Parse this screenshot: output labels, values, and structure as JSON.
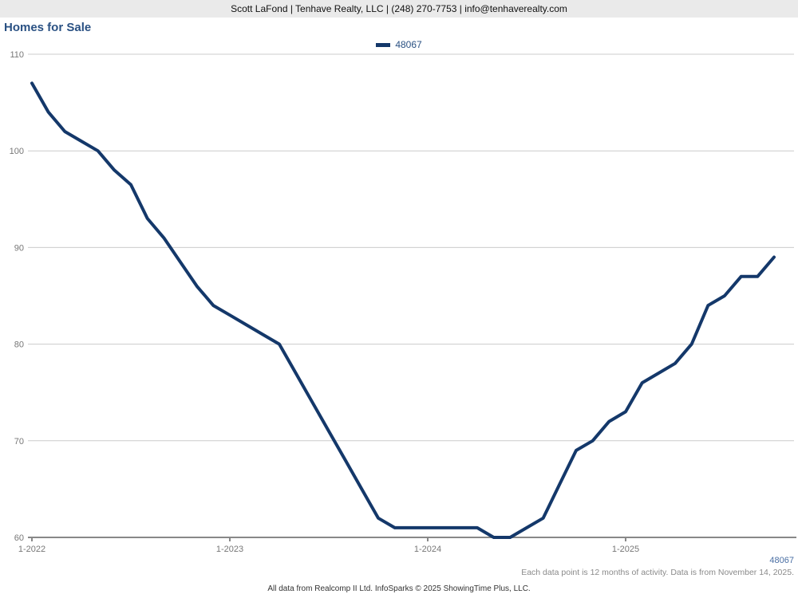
{
  "header": {
    "contact_line": "Scott LaFond | Tenhave Realty, LLC | (248) 270-7753 | info@tenhaverealty.com"
  },
  "chart": {
    "title": "Homes for Sale",
    "legend": {
      "label": "48067"
    }
  },
  "footer": {
    "zip_label": "48067",
    "note": "Each data point is 12 months of activity. Data is from November 14, 2025.",
    "attribution": "All data from Realcomp II Ltd. InfoSparks © 2025 ShowingTime Plus, LLC."
  },
  "chart_data": {
    "type": "line",
    "title": "Homes for Sale",
    "x": [
      "1-2022",
      "2-2022",
      "3-2022",
      "4-2022",
      "5-2022",
      "6-2022",
      "7-2022",
      "8-2022",
      "9-2022",
      "10-2022",
      "11-2022",
      "12-2022",
      "1-2023",
      "2-2023",
      "3-2023",
      "4-2023",
      "5-2023",
      "6-2023",
      "7-2023",
      "8-2023",
      "9-2023",
      "10-2023",
      "11-2023",
      "12-2023",
      "1-2024",
      "2-2024",
      "3-2024",
      "4-2024",
      "5-2024",
      "6-2024",
      "7-2024",
      "8-2024",
      "9-2024",
      "10-2024",
      "11-2024",
      "12-2024",
      "1-2025",
      "2-2025",
      "3-2025",
      "4-2025",
      "5-2025",
      "6-2025",
      "7-2025",
      "8-2025",
      "9-2025",
      "10-2025"
    ],
    "series": [
      {
        "name": "48067",
        "values": [
          107,
          104,
          102,
          101,
          100,
          98,
          96.5,
          93,
          91,
          88.5,
          86,
          84,
          83,
          82,
          81,
          80,
          77,
          74,
          71,
          68,
          65,
          62,
          61,
          61,
          61,
          61,
          61,
          61,
          60,
          60,
          61,
          62,
          65.5,
          69,
          70,
          72,
          73,
          76,
          77,
          78,
          80,
          84,
          85,
          87,
          87,
          89
        ]
      }
    ],
    "x_tick_labels": [
      "1-2022",
      "1-2023",
      "1-2024",
      "1-2025"
    ],
    "x_tick_indices": [
      0,
      12,
      24,
      36
    ],
    "y_ticks": [
      60,
      70,
      80,
      90,
      100,
      110
    ],
    "ylim": [
      60,
      110
    ],
    "grid": true,
    "legend_position": "top-center",
    "line_color": "#14386a",
    "grid_color": "#cccccc",
    "axis_color": "#888888",
    "tick_label_color": "#777777"
  }
}
